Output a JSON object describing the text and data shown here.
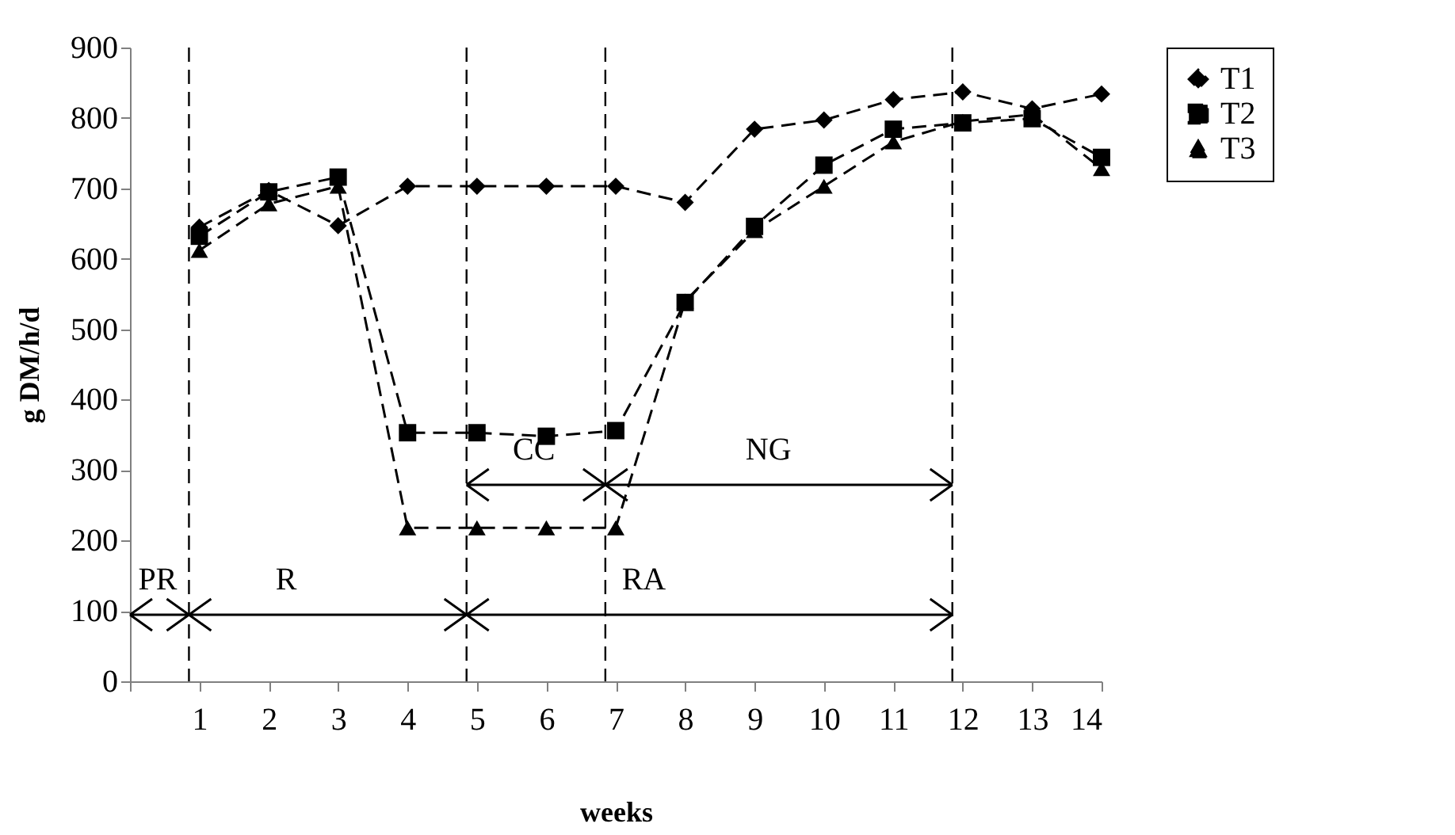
{
  "chart_data": {
    "type": "line",
    "xlabel": "weeks",
    "ylabel": "g DM/h/d",
    "x": [
      1,
      2,
      3,
      4,
      5,
      6,
      7,
      8,
      9,
      10,
      11,
      12,
      13,
      14
    ],
    "series": [
      {
        "name": "T1",
        "color": "#000000",
        "marker": "diamond",
        "values": [
          645,
          697,
          647,
          703,
          703,
          703,
          703,
          680,
          784,
          797,
          826,
          837,
          813,
          834
        ]
      },
      {
        "name": "T2",
        "color": "#000000",
        "marker": "square",
        "values": [
          632,
          695,
          716,
          353,
          353,
          348,
          356,
          538,
          646,
          733,
          784,
          793,
          799,
          744
        ]
      },
      {
        "name": "T3",
        "color": "#000000",
        "marker": "triangle",
        "values": [
          612,
          678,
          703,
          218,
          218,
          218,
          218,
          540,
          640,
          703,
          766,
          795,
          805,
          728
        ]
      }
    ],
    "xlim": [
      0,
      14
    ],
    "xticks": [
      {
        "value": 0,
        "label": null
      },
      1,
      2,
      3,
      4,
      5,
      6,
      7,
      8,
      9,
      10,
      11,
      12,
      13,
      14
    ],
    "ylim": [
      0,
      900
    ],
    "yticks": [
      0,
      100,
      200,
      300,
      400,
      500,
      600,
      700,
      800,
      900
    ],
    "ref_lines": [
      {
        "axis": "x",
        "value": 0.85,
        "line_style": "dashed"
      },
      {
        "axis": "x",
        "value": 4.85,
        "line_style": "dashed"
      },
      {
        "axis": "x",
        "value": 6.85,
        "line_style": "dashed"
      },
      {
        "axis": "x",
        "value": 11.85,
        "line_style": "dashed"
      }
    ],
    "annotations": [
      "PR",
      "R",
      "RA",
      "CC",
      "NG"
    ],
    "grid": false,
    "legend": "right",
    "line_style": "dashed"
  }
}
